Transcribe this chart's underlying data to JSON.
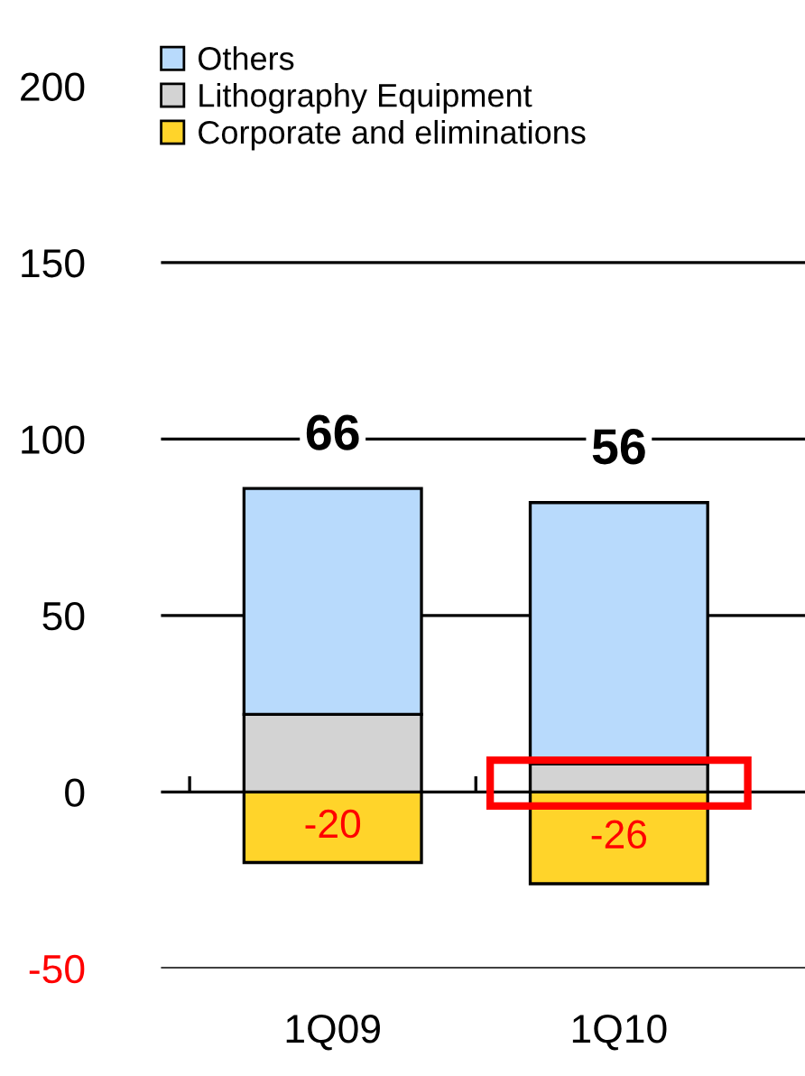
{
  "chart_data": {
    "type": "bar",
    "stacked": true,
    "categories": [
      "1Q09",
      "1Q10"
    ],
    "series": [
      {
        "name": "Corporate and eliminations",
        "color": "#ffd42a",
        "values": [
          -20,
          -26
        ],
        "value_labels": [
          "-20",
          "-26"
        ]
      },
      {
        "name": "Lithography Equipment",
        "color": "#d3d3d3",
        "values": [
          22,
          8
        ]
      },
      {
        "name": "Others",
        "color": "#b8dafc",
        "values": [
          64,
          74
        ]
      }
    ],
    "totals": [
      "66",
      "56"
    ],
    "ylim": [
      -50,
      200
    ],
    "yticks": [
      {
        "value": -50,
        "label": "-50"
      },
      0,
      50,
      100,
      150,
      200
    ],
    "grid": "y",
    "legend": "top left"
  }
}
